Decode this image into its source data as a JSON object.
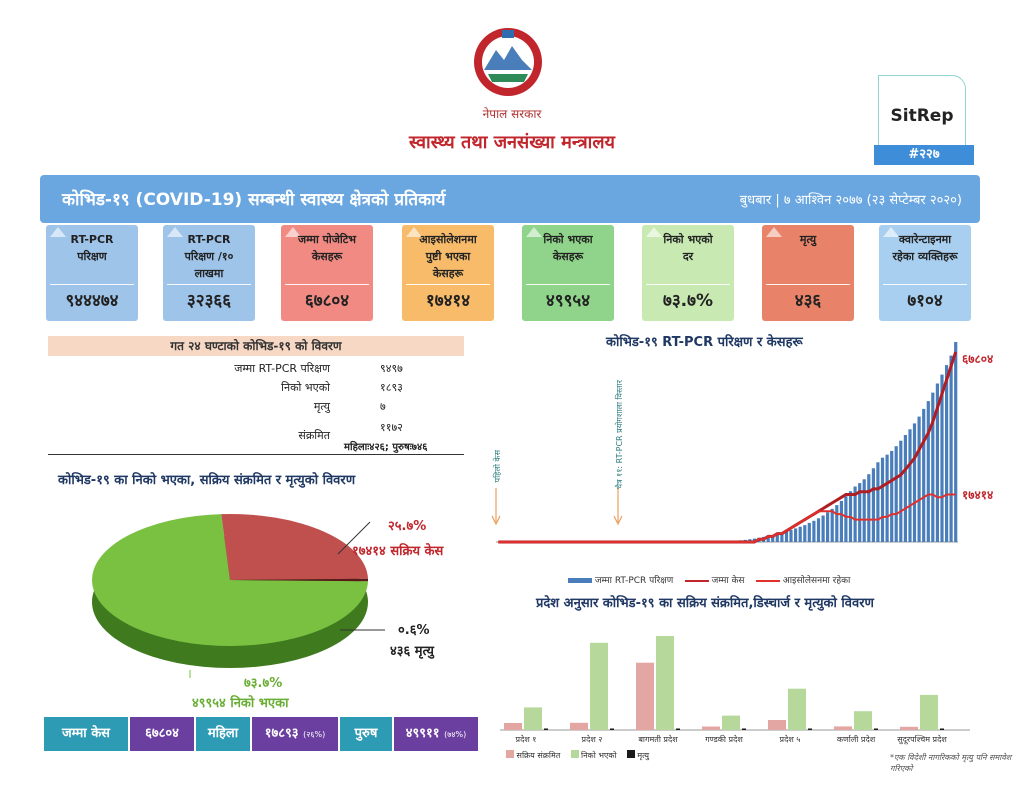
{
  "header": {
    "government": "नेपाल सरकार",
    "ministry": "स्वास्थ्य तथा जनसंख्या मन्त्रालय",
    "sitrep_label": "SitRep",
    "sitrep_number": "#२२७"
  },
  "banner": {
    "title": "कोभिड-१९ (COVID-19) सम्बन्धी स्वास्थ्य क्षेत्रको प्रतिकार्य",
    "date": "बुधबार | ७ आश्विन २०७७ (२३ सेप्टेम्बर २०२०)"
  },
  "cards": [
    {
      "label": "RT-PCR\nपरिक्षण",
      "value": "९४४४७४",
      "color": "#9ec4ea"
    },
    {
      "label": "RT-PCR\nपरिक्षण /१०\nलाखमा",
      "value": "३२३६६",
      "color": "#9ec4ea"
    },
    {
      "label": "जम्मा पोजेटिभ\nकेसहरू",
      "value": "६७८०४",
      "color": "#f08a82"
    },
    {
      "label": "आइसोलेशनमा\nपुष्टी भएका\nकेसहरू",
      "value": "१७४१४",
      "color": "#f7bb6a"
    },
    {
      "label": "निको भएका\nकेसहरू",
      "value": "४९९५४",
      "color": "#8fd48a"
    },
    {
      "label": "निको भएको\nदर",
      "value": "७३.७%",
      "color": "#c8eab2"
    },
    {
      "label": "मृत्यु",
      "value": "४३६",
      "color": "#e8836a"
    },
    {
      "label": "क्वारेन्टाइनमा\nरहेका व्यक्तिहरू",
      "value": "७१०४",
      "color": "#a9cff0"
    }
  ],
  "last24": {
    "title": "गत २४ घण्टाको कोभिड-१९ को विवरण",
    "rows": [
      {
        "label": "जम्मा RT-PCR परिक्षण",
        "value": "९४९७"
      },
      {
        "label": "निको भएको",
        "value": "१८९३"
      },
      {
        "label": "मृत्यु",
        "value": "७"
      },
      {
        "label": "संक्रमित",
        "value": "११७२"
      }
    ],
    "gender_note": "महिलाः४२६; पुरुषः७४६"
  },
  "pie": {
    "title": "कोभिड-१९ का निको भएका, सक्रिय संक्रमित र मृत्युको विवरण",
    "active_pct": "२५.७%",
    "active_label": "१७४१४ सक्रिय केस",
    "death_pct": "०.६%",
    "death_label": "४३६ मृत्यु",
    "recovered_pct": "७३.७%",
    "recovered_label": "४९९५४ निको भएका",
    "active_color": "#c0504d",
    "recovered_color": "#7ac142",
    "death_color": "#5a1a1a"
  },
  "bottom": {
    "total_label": "जम्मा केस",
    "total_value": "६७८०४",
    "female_label": "महिला",
    "female_value": "१७८९३",
    "female_pct": "(२६%)",
    "male_label": "पुरुष",
    "male_value": "४९९११",
    "male_pct": "(७४%)"
  },
  "line_chart": {
    "title": "कोभिड-१९ RT-PCR परिक्षण र केसहरू",
    "annotation1": "पहिलो केस",
    "annotation2": "चैत्र ११: RT-PCR प्रयोगशाला विस्तार",
    "end_total": "६७८०४",
    "end_isolation": "१७४१४",
    "legend": [
      "जम्मा RT-PCR परिक्षण",
      "जम्मा केस",
      "आइसोलेसनमा रहेका"
    ]
  },
  "chart_data": [
    {
      "type": "pie",
      "title": "कोभिड-१९ का निको भएका, सक्रिय संक्रमित र मृत्युको विवरण",
      "categories": [
        "निको भएका",
        "सक्रिय केस",
        "मृत्यु"
      ],
      "values": [
        73.7,
        25.7,
        0.6
      ]
    },
    {
      "type": "bar",
      "title": "कोभिड-१९ RT-PCR परिक्षण र केसहरू",
      "series": [
        {
          "name": "जम्मा RT-PCR परिक्षण",
          "values": [
            0,
            0,
            0,
            0,
            0,
            0,
            0,
            0,
            0,
            0,
            0,
            0,
            0,
            0,
            0,
            0,
            0,
            0,
            0,
            0,
            0,
            0,
            0,
            0,
            0,
            0,
            0,
            0,
            0,
            0,
            0,
            0,
            0,
            0,
            0,
            0,
            0,
            0,
            0,
            0,
            0,
            0,
            0,
            0,
            0,
            0,
            0,
            0,
            1,
            2,
            3,
            4,
            6,
            8,
            10,
            13,
            16,
            20,
            24,
            28,
            33,
            38,
            44,
            50,
            57,
            64,
            72,
            80,
            90,
            100,
            112,
            125,
            140,
            156,
            174,
            194,
            216,
            240,
            262,
            278,
            296,
            320,
            348,
            376,
            398,
            412,
            430,
            452,
            478,
            505,
            532,
            560,
            592,
            628,
            665,
            705,
            748,
            790,
            835,
            880,
            944
          ]
        },
        {
          "name": "जम्मा केस",
          "values": [
            0,
            0,
            0,
            0,
            0,
            0,
            0,
            0,
            0,
            0,
            0,
            0,
            0,
            0,
            0,
            0,
            0,
            0,
            0,
            0,
            0,
            0,
            0,
            0,
            0,
            0,
            0,
            0,
            0,
            0,
            0,
            0,
            0,
            0,
            0,
            0,
            0,
            0,
            0,
            0,
            0,
            0,
            0,
            0,
            0,
            0,
            0,
            0,
            0,
            0,
            0,
            0,
            0,
            0,
            0,
            0,
            0,
            1,
            1,
            2,
            2,
            3,
            3,
            4,
            5,
            6,
            7,
            8,
            9,
            10,
            11,
            12,
            13,
            14,
            15,
            16,
            17,
            17,
            17,
            18,
            18,
            18,
            19,
            19,
            20,
            21,
            22,
            23,
            24,
            26,
            28,
            30,
            33,
            36,
            39,
            43,
            48,
            53,
            58,
            63,
            68
          ]
        },
        {
          "name": "आइसोलेसनमा रहेका",
          "values": [
            0,
            0,
            0,
            0,
            0,
            0,
            0,
            0,
            0,
            0,
            0,
            0,
            0,
            0,
            0,
            0,
            0,
            0,
            0,
            0,
            0,
            0,
            0,
            0,
            0,
            0,
            0,
            0,
            0,
            0,
            0,
            0,
            0,
            0,
            0,
            0,
            0,
            0,
            0,
            0,
            0,
            0,
            0,
            0,
            0,
            0,
            0,
            0,
            0,
            0,
            0,
            0,
            0,
            0,
            0,
            0,
            0,
            1,
            1,
            2,
            2,
            3,
            3,
            4,
            5,
            6,
            7,
            8,
            9,
            10,
            11,
            11,
            11,
            11,
            10,
            10,
            9,
            9,
            8,
            8,
            8,
            8,
            8,
            8,
            9,
            9,
            10,
            10,
            11,
            12,
            13,
            14,
            15,
            16,
            17,
            17,
            16,
            16,
            17,
            17,
            17
          ]
        }
      ]
    },
    {
      "type": "bar",
      "title": "प्रदेश अनुसार कोभिड-१९ का सक्रिय संक्रमित,डिस्चार्ज र मृत्युको विवरण",
      "categories": [
        "प्रदेश १",
        "प्रदेश २",
        "बागमती प्रदेश",
        "गण्डकी प्रदेश",
        "प्रदेश ५",
        "कर्णाली प्रदेश",
        "सुदूरपश्चिम प्रदेश"
      ],
      "series": [
        {
          "name": "सक्रिय संक्रमित",
          "values": [
            1063,
            1088,
            10165,
            523,
            1505,
            538,
            488
          ]
        },
        {
          "name": "निको भएको",
          "values": [
            3416,
            13160,
            14193,
            2174,
            6229,
            2845,
            5295
          ]
        },
        {
          "name": "मृत्यु",
          "values": [
            45,
            123,
            193,
            36,
            50,
            4,
            11
          ]
        }
      ]
    }
  ],
  "province_chart": {
    "title": "प्रदेश अनुसार कोभिड-१९ का सक्रिय संक्रमित,डिस्चार्ज र मृत्युको विवरण",
    "legend": [
      "सक्रिय संक्रमित",
      "निको भएको",
      "मृत्यु"
    ],
    "note": "*एक विदेशी नागरिकको मृत्यु पनि समावेश गरिएको"
  },
  "colors": {
    "bar_blue": "#4a7ebb",
    "line_red": "#c0262c",
    "active_bar": "#e4a6a2",
    "recovered_bar": "#b6d99b",
    "death_bar": "#1a1a1a"
  }
}
